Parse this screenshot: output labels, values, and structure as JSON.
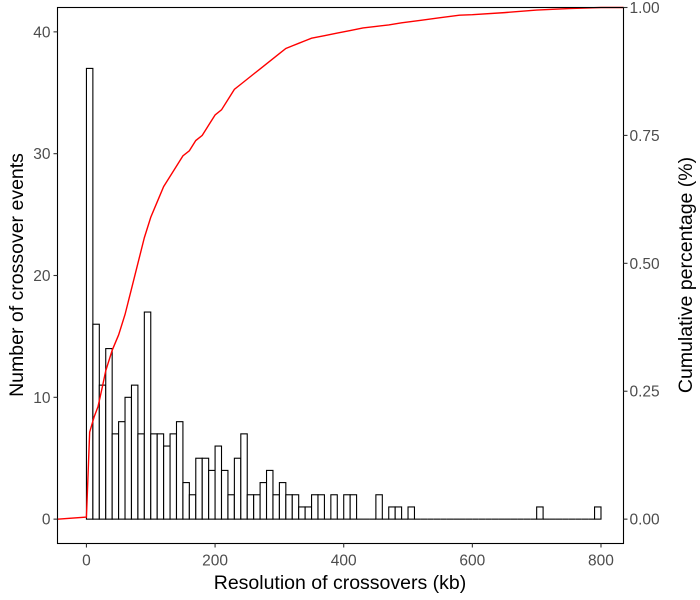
{
  "chart_data": {
    "type": "bar",
    "subtype": "histogram with cumulative line (dual y-axis)",
    "xlabel": "Resolution of crossovers (kb)",
    "ylabel": "Number of crossover events",
    "y2label": "Cumulative percentage (%)",
    "xlim": [
      -45,
      835
    ],
    "ylim": [
      -2,
      42
    ],
    "y2lim": [
      -0.0476,
      1.0
    ],
    "x_ticks": [
      0,
      200,
      400,
      600,
      800
    ],
    "y_ticks": [
      0,
      10,
      20,
      30,
      40
    ],
    "y2_ticks": [
      "0.00",
      "0.25",
      "0.50",
      "0.75",
      "1.00"
    ],
    "bin_width": 10,
    "bins": {
      "x_start": [
        0,
        10,
        20,
        30,
        40,
        50,
        60,
        70,
        80,
        90,
        100,
        110,
        120,
        130,
        140,
        150,
        160,
        170,
        180,
        190,
        200,
        210,
        220,
        230,
        240,
        250,
        260,
        270,
        280,
        290,
        300,
        310,
        320,
        330,
        340,
        350,
        360,
        370,
        380,
        390,
        400,
        410,
        420,
        430,
        440,
        450,
        460,
        470,
        480,
        490,
        500,
        510,
        520,
        530,
        540,
        550,
        560,
        570,
        580,
        590,
        600,
        610,
        620,
        630,
        640,
        650,
        660,
        670,
        680,
        690,
        700,
        710,
        720,
        730,
        740,
        750,
        760,
        770,
        780,
        790
      ],
      "counts": [
        37,
        16,
        11,
        14,
        7,
        8,
        10,
        11,
        7,
        17,
        7,
        7,
        6,
        7,
        8,
        3,
        2,
        5,
        5,
        4,
        6,
        4,
        2,
        5,
        7,
        2,
        2,
        3,
        4,
        2,
        3,
        2,
        2,
        1,
        1,
        2,
        2,
        0,
        2,
        0,
        2,
        2,
        0,
        0,
        0,
        2,
        0,
        1,
        1,
        0,
        1,
        0,
        0,
        0,
        0,
        0,
        0,
        0,
        0,
        0,
        0,
        0,
        0,
        0,
        0,
        0,
        0,
        0,
        0,
        0,
        1,
        0,
        0,
        0,
        0,
        0,
        0,
        0,
        0,
        1
      ]
    },
    "series": [
      {
        "name": "",
        "type": "line",
        "axis": "right",
        "color": "#ff0000",
        "points": [
          [
            -45,
            0.0
          ],
          [
            0,
            0.004
          ],
          [
            5,
            0.17
          ],
          [
            12,
            0.2
          ],
          [
            18,
            0.22
          ],
          [
            25,
            0.26
          ],
          [
            30,
            0.29
          ],
          [
            40,
            0.33
          ],
          [
            50,
            0.36
          ],
          [
            60,
            0.4
          ],
          [
            70,
            0.45
          ],
          [
            80,
            0.5
          ],
          [
            90,
            0.55
          ],
          [
            100,
            0.59
          ],
          [
            110,
            0.62
          ],
          [
            120,
            0.65
          ],
          [
            130,
            0.67
          ],
          [
            140,
            0.69
          ],
          [
            150,
            0.71
          ],
          [
            160,
            0.72
          ],
          [
            170,
            0.74
          ],
          [
            180,
            0.75
          ],
          [
            190,
            0.77
          ],
          [
            200,
            0.79
          ],
          [
            210,
            0.8
          ],
          [
            220,
            0.82
          ],
          [
            230,
            0.84
          ],
          [
            240,
            0.85
          ],
          [
            250,
            0.86
          ],
          [
            260,
            0.87
          ],
          [
            270,
            0.88
          ],
          [
            280,
            0.89
          ],
          [
            290,
            0.9
          ],
          [
            300,
            0.91
          ],
          [
            310,
            0.92
          ],
          [
            320,
            0.925
          ],
          [
            330,
            0.93
          ],
          [
            340,
            0.935
          ],
          [
            350,
            0.94
          ],
          [
            370,
            0.945
          ],
          [
            390,
            0.95
          ],
          [
            410,
            0.955
          ],
          [
            430,
            0.96
          ],
          [
            450,
            0.963
          ],
          [
            470,
            0.966
          ],
          [
            490,
            0.97
          ],
          [
            520,
            0.975
          ],
          [
            550,
            0.98
          ],
          [
            580,
            0.985
          ],
          [
            600,
            0.986
          ],
          [
            650,
            0.99
          ],
          [
            700,
            0.995
          ],
          [
            750,
            0.998
          ],
          [
            800,
            1.0
          ],
          [
            835,
            1.0
          ]
        ]
      }
    ],
    "bar_fill": "#ffffff",
    "bar_stroke": "#000000",
    "line_color": "#ff0000",
    "grid": false,
    "legend": "none"
  }
}
